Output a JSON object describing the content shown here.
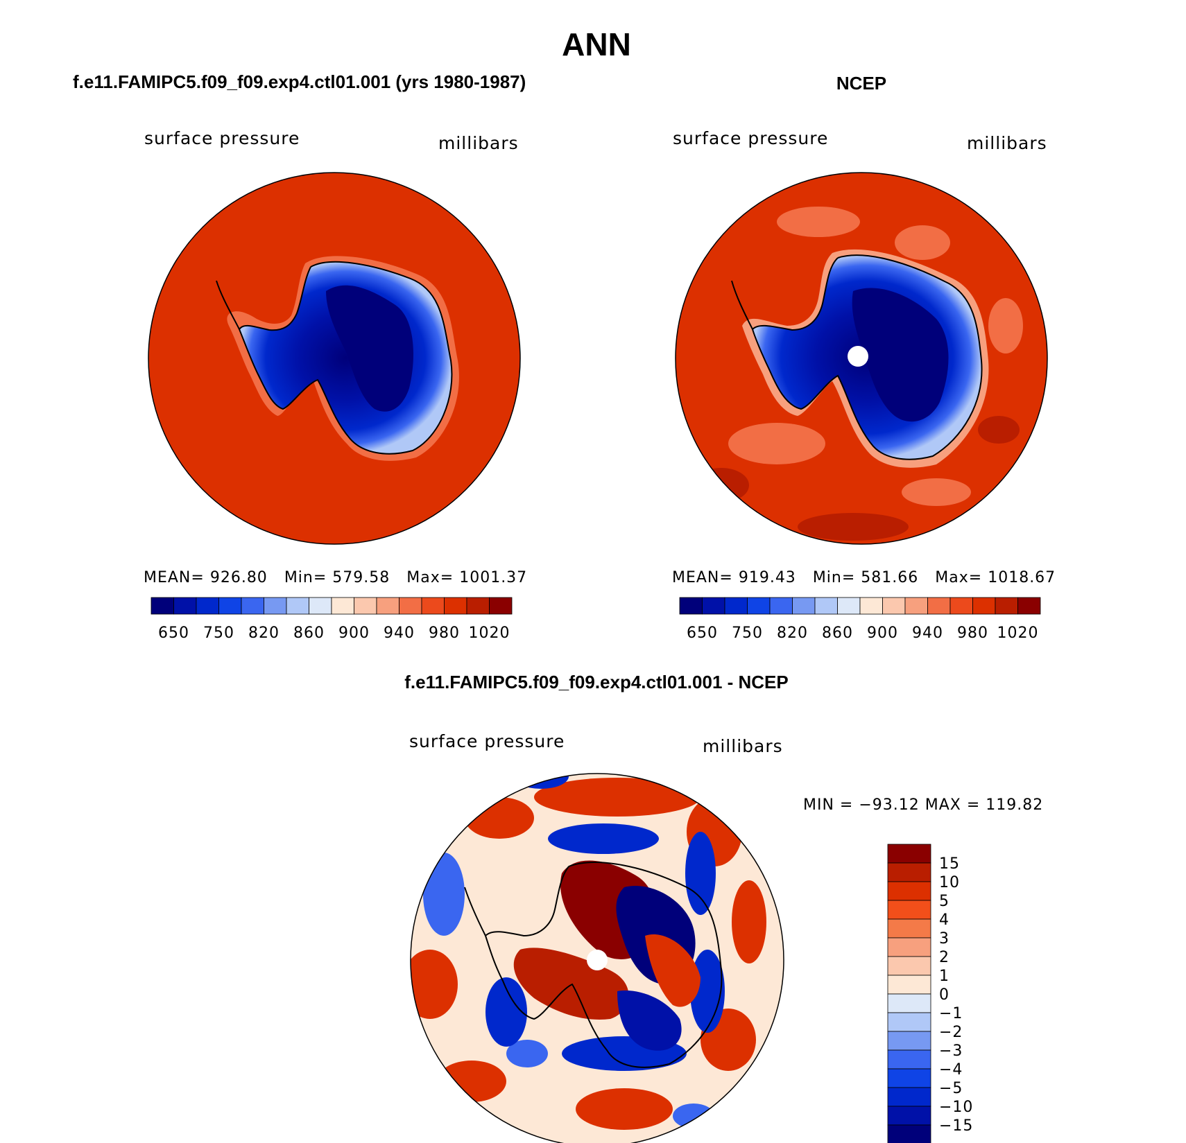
{
  "title": "ANN",
  "panels": [
    {
      "id": "model",
      "header": "f.e11.FAMIPC5.f09_f09.exp4.ctl01.001 (yrs 1980-1987)",
      "variable": "surface pressure",
      "units": "millibars",
      "stats": {
        "mean_label": "MEAN=",
        "mean": "926.80",
        "min_label": "Min=",
        "min": "579.58",
        "max_label": "Max=",
        "max": "1001.37"
      },
      "pole_hole": false
    },
    {
      "id": "obs",
      "header": "NCEP",
      "variable": "surface pressure",
      "units": "millibars",
      "stats": {
        "mean_label": "MEAN=",
        "mean": "919.43",
        "min_label": "Min=",
        "min": "581.66",
        "max_label": "Max=",
        "max": "1018.67"
      },
      "pole_hole": true
    },
    {
      "id": "diff",
      "header": "f.e11.FAMIPC5.f09_f09.exp4.ctl01.001 - NCEP",
      "variable": "surface pressure",
      "units": "millibars",
      "stats_line": "MIN = −93.12  MAX = 119.82",
      "pole_hole": true
    }
  ],
  "colorbar_abs": {
    "colors": [
      "#00007a",
      "#0011a8",
      "#0028cc",
      "#0f44e6",
      "#3a66f0",
      "#7799f2",
      "#b0c8f7",
      "#dde8f8",
      "#fde8d6",
      "#fbc8ae",
      "#f7a07e",
      "#f26e45",
      "#ec4a1c",
      "#dc3000",
      "#b91e00",
      "#8a0000"
    ],
    "labels": [
      "650",
      "750",
      "820",
      "860",
      "900",
      "940",
      "980",
      "1020"
    ]
  },
  "colorbar_diff": {
    "colors": [
      "#8a0000",
      "#b91e00",
      "#dc3000",
      "#f24f1a",
      "#f47a48",
      "#f7a07e",
      "#fbc8ae",
      "#fde8d6",
      "#dde8f8",
      "#b0c8f7",
      "#7799f2",
      "#3a66f0",
      "#0f44e6",
      "#0028cc",
      "#0011a8",
      "#00007a"
    ],
    "labels": [
      "15",
      "10",
      "5",
      "4",
      "3",
      "2",
      "1",
      "0",
      "−1",
      "−2",
      "−3",
      "−4",
      "−5",
      "−10",
      "−15"
    ]
  }
}
